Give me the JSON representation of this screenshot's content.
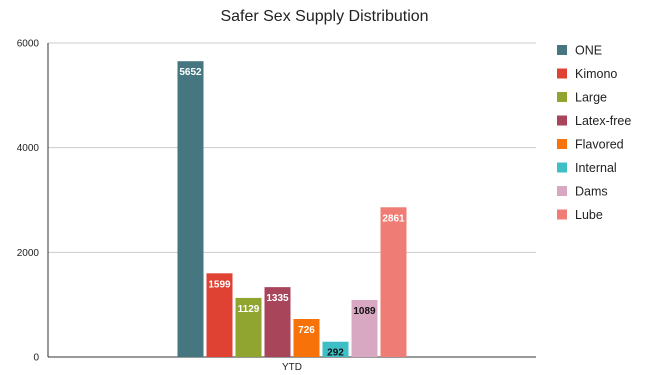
{
  "chart_data": {
    "type": "bar",
    "title": "Safer Sex Supply Distribution",
    "categories": [
      "YTD"
    ],
    "series": [
      {
        "name": "ONE",
        "values": [
          5652
        ],
        "color": "#46767f",
        "label_color": "#ffffff"
      },
      {
        "name": "Kimono",
        "values": [
          1599
        ],
        "color": "#df4132",
        "label_color": "#ffffff"
      },
      {
        "name": "Large",
        "values": [
          1129
        ],
        "color": "#8fa530",
        "label_color": "#ffffff"
      },
      {
        "name": "Latex-free",
        "values": [
          1335
        ],
        "color": "#a8455b",
        "label_color": "#ffffff"
      },
      {
        "name": "Flavored",
        "values": [
          726
        ],
        "color": "#f77209",
        "label_color": "#ffffff"
      },
      {
        "name": "Internal",
        "values": [
          292
        ],
        "color": "#3ebfc6",
        "label_color": "#111111"
      },
      {
        "name": "Dams",
        "values": [
          1089
        ],
        "color": "#d8a8c2",
        "label_color": "#111111"
      },
      {
        "name": "Lube",
        "values": [
          2861
        ],
        "color": "#f07c76",
        "label_color": "#ffffff"
      }
    ],
    "ylim": [
      0,
      6000
    ],
    "yticks": [
      0,
      2000,
      4000,
      6000
    ],
    "grid": true,
    "legend_position": "right",
    "data_labels": true,
    "xlabel": "",
    "ylabel": ""
  }
}
